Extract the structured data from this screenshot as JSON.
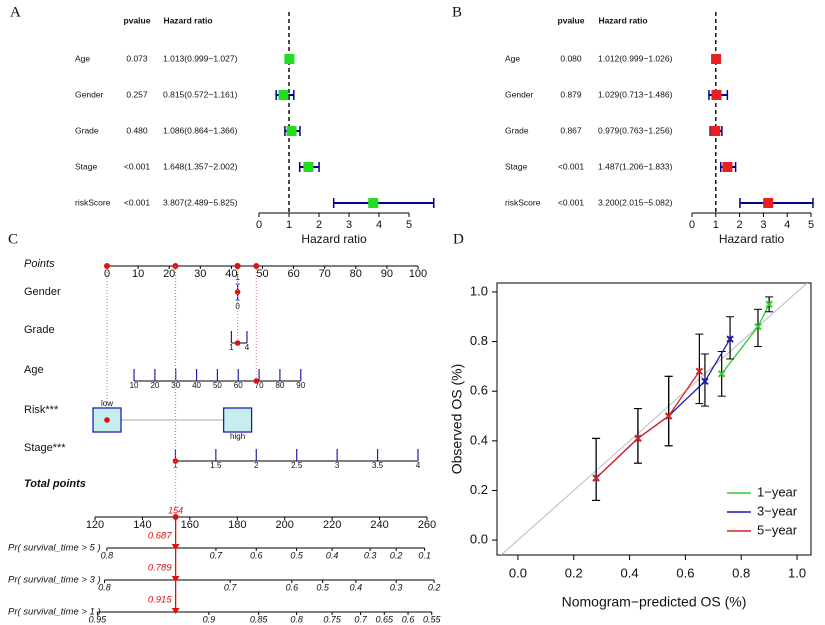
{
  "chart_data": [
    {
      "type": "forest",
      "panel": "A",
      "columns": [
        "pvalue",
        "Hazard ratio"
      ],
      "categories": [
        "Age",
        "Gender",
        "Grade",
        "Stage",
        "riskScore"
      ],
      "pvalues": [
        "0.073",
        "0.257",
        "0.480",
        "<0.001",
        "<0.001"
      ],
      "ratio_labels": [
        "1.013(0.999−1.027)",
        "0.815(0.572−1.161)",
        "1.086(0.864−1.366)",
        "1.648(1.357−2.002)",
        "3.807(2.489−5.825)"
      ],
      "values": [
        1.013,
        0.815,
        1.086,
        1.648,
        3.807
      ],
      "lower": [
        0.999,
        0.572,
        0.864,
        1.357,
        2.489
      ],
      "upper": [
        1.027,
        1.161,
        1.366,
        2.002,
        5.825
      ],
      "xlim": [
        0,
        5
      ],
      "xticks": [
        0,
        1,
        2,
        3,
        4,
        5
      ],
      "ref": 1,
      "xlabel": "Hazard ratio",
      "color": "#22dd22",
      "whisker_color": "#00008b"
    },
    {
      "type": "forest",
      "panel": "B",
      "columns": [
        "pvalue",
        "Hazard ratio"
      ],
      "categories": [
        "Age",
        "Gender",
        "Grade",
        "Stage",
        "riskScore"
      ],
      "pvalues": [
        "0.080",
        "0.879",
        "0.867",
        "<0.001",
        "<0.001"
      ],
      "ratio_labels": [
        "1.012(0.999−1.026)",
        "1.029(0.713−1.486)",
        "0.979(0.763−1.256)",
        "1.487(1.206−1.833)",
        "3.200(2.015−5.082)"
      ],
      "values": [
        1.012,
        1.029,
        0.979,
        1.487,
        3.2
      ],
      "lower": [
        0.999,
        0.713,
        0.763,
        1.206,
        2.015
      ],
      "upper": [
        1.026,
        1.486,
        1.256,
        1.833,
        5.082
      ],
      "xlim": [
        0,
        5
      ],
      "xticks": [
        0,
        1,
        2,
        3,
        4,
        5
      ],
      "ref": 1,
      "xlabel": "Hazard ratio",
      "color": "#e82020",
      "whisker_color": "#00008b"
    },
    {
      "type": "nomogram",
      "panel": "C",
      "points": {
        "name": "Points",
        "xlim": [
          0,
          100
        ],
        "ticks": [
          0,
          10,
          20,
          30,
          40,
          50,
          60,
          70,
          80,
          90,
          100
        ]
      },
      "variables": [
        {
          "name": "Gender",
          "ticks": [
            1,
            0
          ],
          "at": [
            42,
            42
          ],
          "score": 42
        },
        {
          "name": "Grade",
          "ticks": [
            1,
            4
          ],
          "at": [
            40,
            45
          ],
          "score": 42
        },
        {
          "name": "Age",
          "ticks": [
            10,
            20,
            30,
            40,
            50,
            60,
            70,
            80,
            90
          ],
          "at": [
            8.7,
            15.4,
            22.1,
            28.8,
            35.5,
            42.2,
            48.9,
            55.6,
            62.3
          ],
          "score": 48
        },
        {
          "name": "Risk***",
          "ticks": [
            "low",
            "high"
          ],
          "at": [
            0,
            42
          ],
          "score": 0
        },
        {
          "name": "Stage***",
          "ticks": [
            1,
            1.5,
            2,
            2.5,
            3,
            3.5,
            4
          ],
          "at": [
            22,
            35,
            48,
            61,
            74,
            87,
            100
          ],
          "score": 22
        }
      ],
      "total": {
        "name": "Total points",
        "xlim": [
          120,
          260
        ],
        "ticks": [
          120,
          140,
          160,
          180,
          200,
          220,
          240,
          260
        ],
        "value": 154
      },
      "predictions": [
        {
          "name": "Pr( survival_time > 5 )",
          "ticks": [
            0.8,
            0.7,
            0.6,
            0.5,
            0.4,
            0.3,
            0.2,
            0.1
          ],
          "at": [
            125,
            171,
            188,
            205,
            220,
            236,
            247,
            259
          ],
          "value": 0.687
        },
        {
          "name": "Pr( survival_time > 3 )",
          "ticks": [
            0.8,
            0.7,
            0.6,
            0.5,
            0.4,
            0.3,
            0.2
          ],
          "at": [
            124,
            177,
            203,
            216,
            230,
            247,
            263
          ],
          "value": 0.789
        },
        {
          "name": "Pr( survival_time > 1 )",
          "ticks": [
            0.95,
            0.9,
            0.85,
            0.8,
            0.75,
            0.7,
            0.65,
            0.6,
            0.55
          ],
          "at": [
            121,
            168,
            189,
            205,
            220,
            232,
            242,
            252,
            262
          ],
          "value": 0.915
        }
      ],
      "line_color": "#2020b0",
      "mark_color": "#dd1111"
    },
    {
      "type": "calibration",
      "panel": "D",
      "xlabel": "Nomogram−predicted OS (%)",
      "ylabel": "Observed OS (%)",
      "xlim": [
        -0.075,
        1.05
      ],
      "ylim": [
        -0.06,
        1.036
      ],
      "xticks": [
        {
          "value": 0,
          "label": "0.0"
        },
        0.2,
        0.4,
        0.6,
        0.8,
        {
          "value": 1,
          "label": "1.0"
        }
      ],
      "yticks": [
        {
          "value": 0,
          "label": "0.0"
        },
        0.2,
        0.4,
        0.6,
        0.8,
        {
          "value": 1,
          "label": "1.0"
        }
      ],
      "legend": "bottom-right",
      "series": [
        {
          "name": "1−year",
          "color": "#33cc33",
          "x": [
            0.73,
            0.86,
            0.9
          ],
          "values": [
            0.67,
            0.86,
            0.95
          ],
          "lower": [
            0.58,
            0.78,
            0.92
          ],
          "upper": [
            0.76,
            0.93,
            0.98
          ]
        },
        {
          "name": "3−year",
          "color": "#1c1cb0",
          "x": [
            0.28,
            0.43,
            0.54,
            0.67,
            0.76
          ],
          "values": [
            0.25,
            0.41,
            0.5,
            0.64,
            0.81
          ],
          "lower": [
            0.16,
            0.31,
            0.38,
            0.54,
            0.73
          ],
          "upper": [
            0.41,
            0.53,
            0.66,
            0.75,
            0.9
          ]
        },
        {
          "name": "5−year",
          "color": "#dd2222",
          "x": [
            0.28,
            0.43,
            0.54,
            0.65
          ],
          "values": [
            0.25,
            0.41,
            0.5,
            0.68
          ],
          "lower": [
            0.16,
            0.31,
            0.38,
            0.55
          ],
          "upper": [
            0.41,
            0.53,
            0.66,
            0.83
          ]
        }
      ]
    }
  ]
}
